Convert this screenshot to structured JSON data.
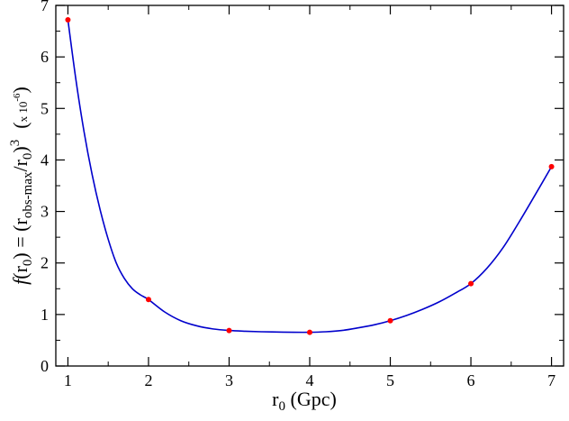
{
  "chart_data": {
    "type": "line",
    "xlabel": {
      "base": "r",
      "sub": "0",
      "rest": " (Gpc)"
    },
    "ylabel": {
      "f": "f",
      "open": "(r",
      "sub0": "0",
      "mid": ") = (r",
      "subobs": "obs-max",
      "slash": "/r",
      "sub0b": "0",
      "close": ")",
      "sup3": "3",
      "scale_open": "(",
      "scale_x": "x 10",
      "scale_exp": "-6",
      "scale_close": ")"
    },
    "xlim": [
      0.85,
      7.15
    ],
    "ylim": [
      0,
      7
    ],
    "x_ticks": [
      1,
      2,
      3,
      4,
      5,
      6,
      7
    ],
    "x_tick_labels": [
      "1",
      "2",
      "3",
      "4",
      "5",
      "6",
      "7"
    ],
    "y_ticks": [
      0,
      1,
      2,
      3,
      4,
      5,
      6,
      7
    ],
    "y_tick_labels": [
      "0",
      "1",
      "2",
      "3",
      "4",
      "5",
      "6",
      "7"
    ],
    "grid": false,
    "legend": "none",
    "series": [
      {
        "color": "#0000cc",
        "style": "line",
        "x": [
          1.0,
          1.1,
          1.2,
          1.3,
          1.4,
          1.5,
          1.6,
          1.7,
          1.8,
          1.9,
          2.0,
          2.2,
          2.4,
          2.6,
          2.8,
          3.0,
          3.2,
          3.4,
          3.6,
          3.8,
          4.0,
          4.2,
          4.4,
          4.6,
          4.8,
          5.0,
          5.2,
          5.4,
          5.6,
          5.8,
          6.0,
          6.2,
          6.4,
          6.6,
          6.8,
          7.0
        ],
        "values": [
          6.72,
          5.55,
          4.55,
          3.72,
          3.03,
          2.46,
          2.0,
          1.7,
          1.5,
          1.38,
          1.29,
          1.05,
          0.88,
          0.78,
          0.72,
          0.69,
          0.675,
          0.665,
          0.66,
          0.655,
          0.655,
          0.665,
          0.69,
          0.74,
          0.8,
          0.88,
          0.98,
          1.1,
          1.24,
          1.41,
          1.6,
          1.9,
          2.3,
          2.8,
          3.33,
          3.87
        ]
      },
      {
        "color": "#ff0000",
        "style": "points",
        "x": [
          1,
          2,
          3,
          4,
          5,
          6,
          7
        ],
        "values": [
          6.72,
          1.29,
          0.69,
          0.655,
          0.88,
          1.6,
          3.87
        ]
      }
    ]
  }
}
